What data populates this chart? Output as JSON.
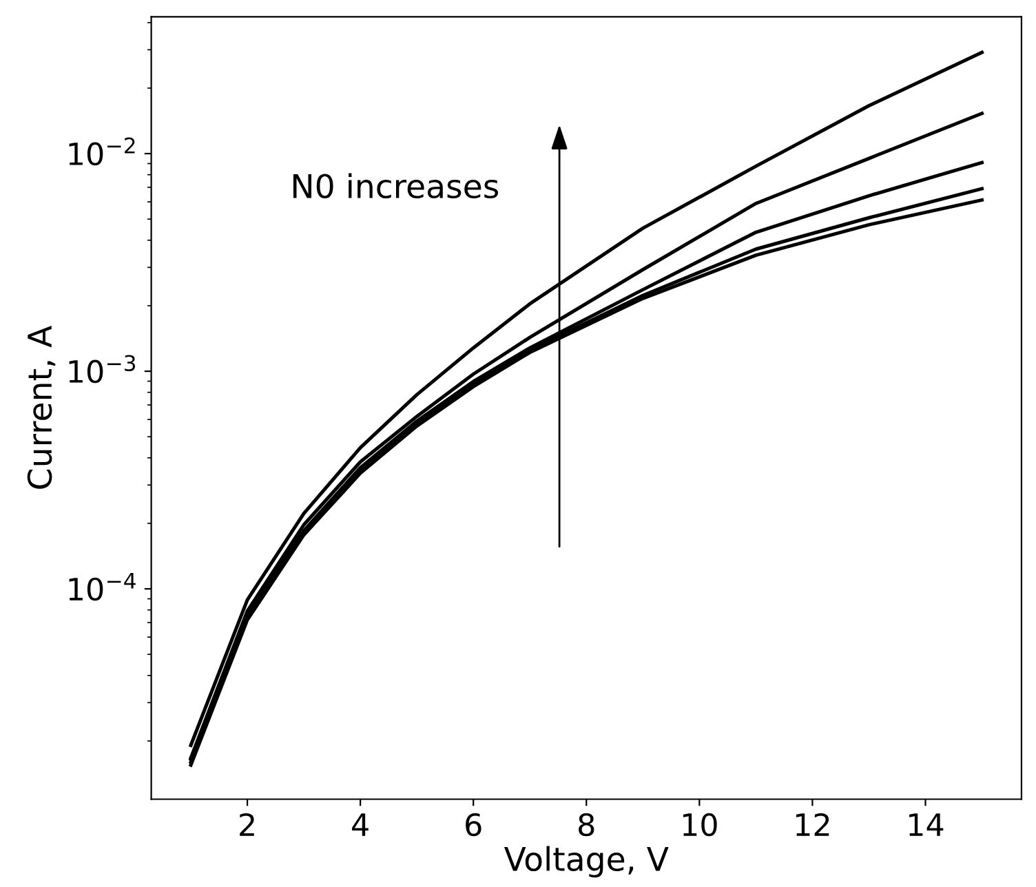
{
  "chart_data": {
    "type": "line",
    "xlabel": "Voltage, V",
    "ylabel": "Current, A",
    "log": "y",
    "grid": false,
    "legend": false,
    "marker": "none",
    "line_style": "solid",
    "x": [
      1,
      2,
      3,
      4,
      5,
      6,
      7,
      9,
      11,
      13,
      15
    ],
    "xlim": [
      0.3,
      15.7
    ],
    "xticks": [
      2,
      4,
      6,
      8,
      10,
      12,
      14
    ],
    "ylim": [
      1.08e-05,
      0.0425
    ],
    "yticks": [
      {
        "value": 0.0001,
        "label": "10$^{−4}$"
      },
      {
        "value": 0.001,
        "label": "10$^{−3}$"
      },
      {
        "value": 0.01,
        "label": "10$^{−2}$"
      }
    ],
    "series": [
      {
        "color": "#000000",
        "values": [
          1.91e-05,
          8.9e-05,
          0.000222,
          0.000445,
          0.00078,
          0.00128,
          0.00204,
          0.00454,
          0.00875,
          0.0166,
          0.0292
        ]
      },
      {
        "color": "#000000",
        "values": [
          1.67e-05,
          7.9e-05,
          0.000197,
          0.000383,
          0.00062,
          0.00097,
          0.00143,
          0.00293,
          0.0059,
          0.0095,
          0.0153
        ]
      },
      {
        "color": "#000000",
        "values": [
          1.65e-05,
          7.6e-05,
          0.000185,
          0.00036,
          0.00059,
          0.000897,
          0.00128,
          0.00237,
          0.00435,
          0.0064,
          0.0091
        ]
      },
      {
        "color": "#000000",
        "values": [
          1.6e-05,
          7.4e-05,
          0.00018,
          0.00035,
          0.000575,
          0.00087,
          0.00125,
          0.00223,
          0.00364,
          0.00507,
          0.0069
        ]
      },
      {
        "color": "#000000",
        "values": [
          1.55e-05,
          7.2e-05,
          0.000177,
          0.00034,
          0.00056,
          0.00085,
          0.00122,
          0.00216,
          0.00341,
          0.00471,
          0.00612
        ]
      }
    ],
    "annotations": [
      "N0 increases"
    ]
  }
}
